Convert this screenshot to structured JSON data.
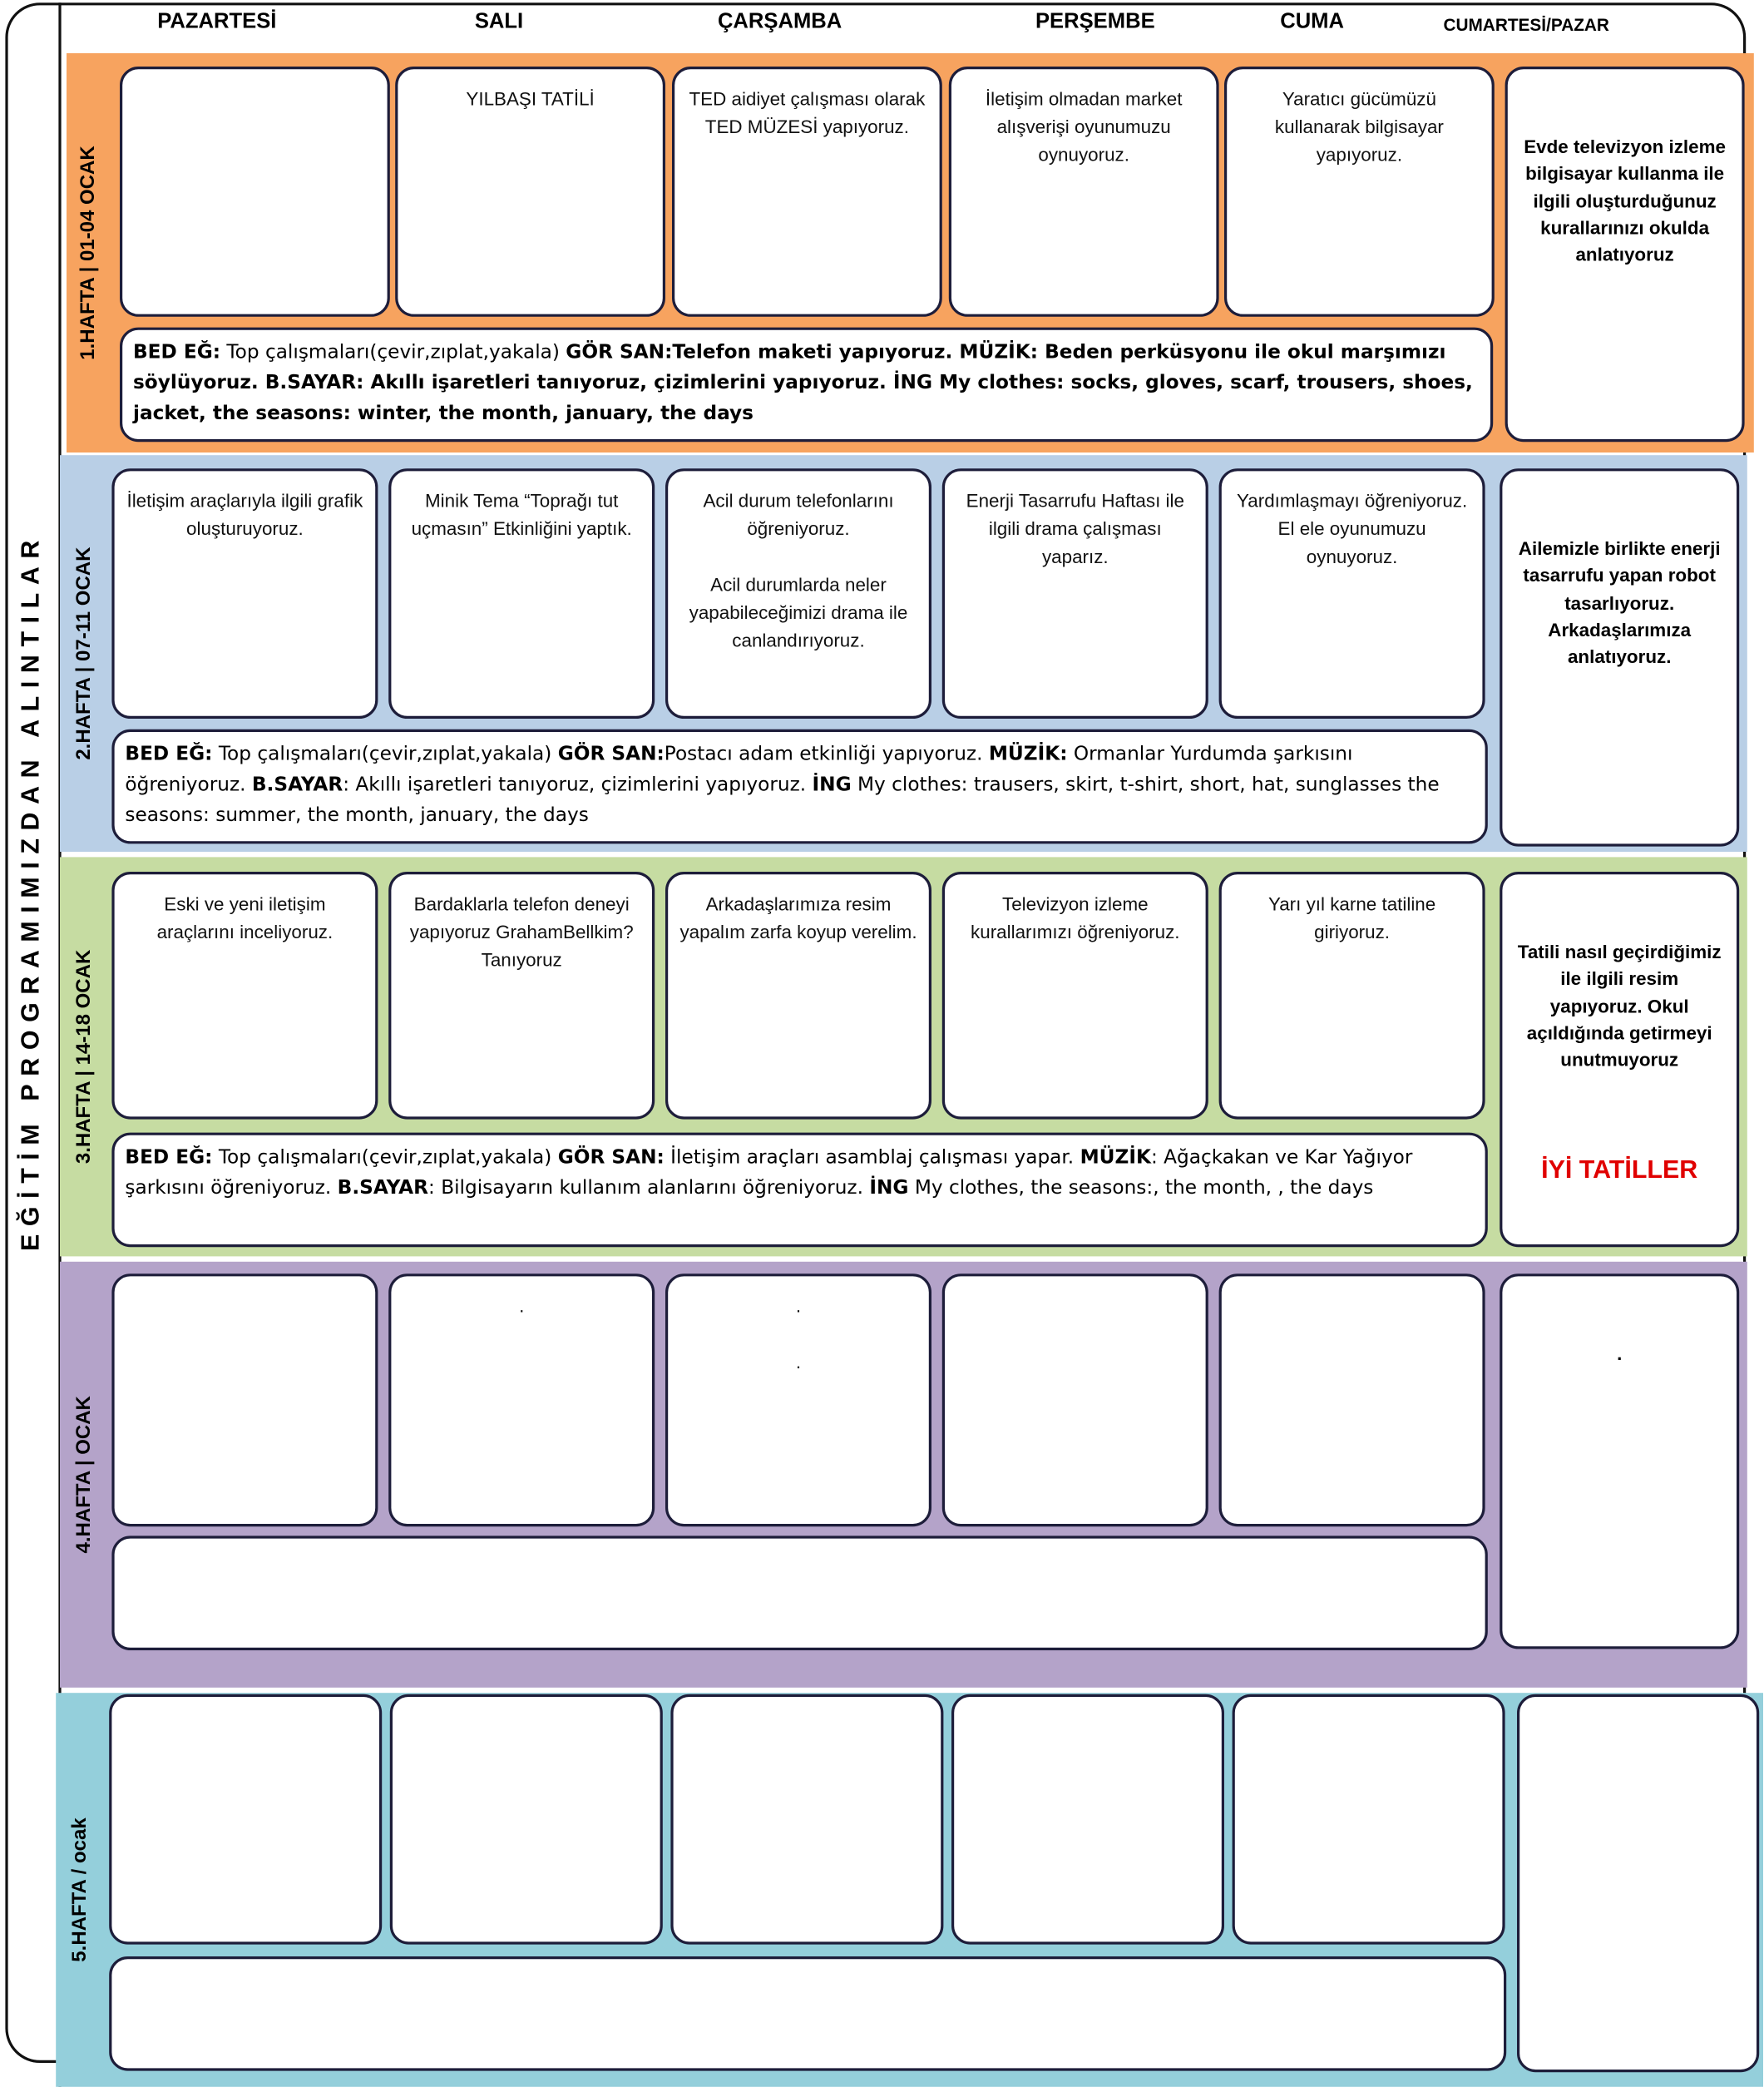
{
  "side_title": "EĞİTİM PROGRAMIMIZDAN ALINTILAR",
  "days": [
    "PAZARTESİ",
    "SALI",
    "ÇARŞAMBA",
    "PERŞEMBE",
    "CUMA",
    "CUMARTESİ/PAZAR"
  ],
  "weeks": [
    {
      "label": "1.HAFTA | 01-04 OCAK",
      "cells": [
        "",
        "YILBAŞI TATİLİ",
        "TED aidiyet çalışması olarak TED MÜZESİ yapıyoruz.",
        "İletişim olmadan market alışverişi oyunumuzu oynuyoruz.",
        "Yaratıcı gücümüzü kullanarak bilgisayar yapıyoruz."
      ],
      "weekend": "Evde televizyon izleme bilgisayar kullanma ile ilgili oluşturduğunuz kurallarınızı okulda anlatıyoruz",
      "activities": [
        {
          "text": "BED EĞ:",
          "bold": true
        },
        {
          "text": " Top çalışmaları(çevir,zıplat,yakala) ",
          "bold": false
        },
        {
          "text": "GÖR SAN:Telefon maketi yapıyoruz. MÜZİK: Beden perküsyonu ile okul marşımızı söylüyoruz. B.SAYAR: Akıllı işaretleri tanıyoruz, çizimlerini yapıyoruz. İNG My clothes: socks, gloves, scarf, trousers, shoes, jacket, the seasons: winter, the month, january, the days",
          "bold": true
        }
      ]
    },
    {
      "label": "2.HAFTA | 07-11 OCAK",
      "cells": [
        "İletişim araçlarıyla ilgili grafik oluşturuyoruz.",
        "Minik Tema “Toprağı tut uçmasın” Etkinliğini yaptık.",
        "Acil durum telefonlarını öğreniyoruz.\n\nAcil durumlarda neler yapabileceğimizi drama ile canlandırıyoruz.",
        "Enerji Tasarrufu Haftası ile ilgili drama çalışması yaparız.",
        "Yardımlaşmayı öğreniyoruz. El ele oyunumuzu oynuyoruz."
      ],
      "weekend": "Ailemizle birlikte enerji tasarrufu yapan robot tasarlıyoruz. Arkadaşlarımıza anlatıyoruz.",
      "activities": [
        {
          "text": "BED EĞ:",
          "bold": true
        },
        {
          "text": " Top çalışmaları(çevir,zıplat,yakala) ",
          "bold": false
        },
        {
          "text": "GÖR SAN:",
          "bold": true
        },
        {
          "text": "Postacı adam etkinliği yapıyoruz. ",
          "bold": false
        },
        {
          "text": "MÜZİK:",
          "bold": true
        },
        {
          "text": " Ormanlar Yurdumda şarkısını öğreniyoruz. ",
          "bold": false
        },
        {
          "text": "B.SAYAR",
          "bold": true
        },
        {
          "text": ": Akıllı işaretleri tanıyoruz, çizimlerini yapıyoruz. ",
          "bold": false
        },
        {
          "text": "İNG",
          "bold": true
        },
        {
          "text": " My clothes: trausers, skirt, t-shirt, short, hat, sunglasses the seasons: summer, the month, january, the days",
          "bold": false
        }
      ]
    },
    {
      "label": "3.HAFTA | 14-18 OCAK",
      "cells": [
        "Eski ve yeni iletişim araçlarını inceliyoruz.",
        "Bardaklarla telefon deneyi yapıyoruz GrahamBellkim? Tanıyoruz",
        "Arkadaşlarımıza resim yapalım zarfa koyup verelim.",
        "Televizyon izleme kurallarımızı öğreniyoruz.",
        "Yarı yıl karne tatiline giriyoruz."
      ],
      "weekend": "Tatili nasıl geçirdiğimiz ile ilgili resim yapıyoruz. Okul açıldığında getirmeyi unutmuyoruz",
      "weekend_note": "İYİ TATİLLER",
      "activities": [
        {
          "text": "BED EĞ:",
          "bold": true
        },
        {
          "text": " Top çalışmaları(çevir,zıplat,yakala) ",
          "bold": false
        },
        {
          "text": "GÖR SAN:",
          "bold": true
        },
        {
          "text": " İletişim araçları asamblaj çalışması yapar. ",
          "bold": false
        },
        {
          "text": "MÜZİK",
          "bold": true
        },
        {
          "text": ": Ağaçkakan ve Kar Yağıyor şarkısını öğreniyoruz. ",
          "bold": false
        },
        {
          "text": "B.SAYAR",
          "bold": true
        },
        {
          "text": ": Bilgisayarın kullanım alanlarını öğreniyoruz. ",
          "bold": false
        },
        {
          "text": "İNG",
          "bold": true
        },
        {
          "text": " My clothes, the seasons:, the month, , the days",
          "bold": false
        }
      ]
    },
    {
      "label": "4.HAFTA | OCAK",
      "cells": [
        "",
        ".",
        ".\n\n.",
        "",
        ""
      ],
      "weekend": ".",
      "activities": []
    },
    {
      "label": "5.HAFTA / ocak",
      "cells": [
        "",
        "",
        "",
        "",
        ""
      ],
      "weekend": "",
      "activities": []
    }
  ]
}
